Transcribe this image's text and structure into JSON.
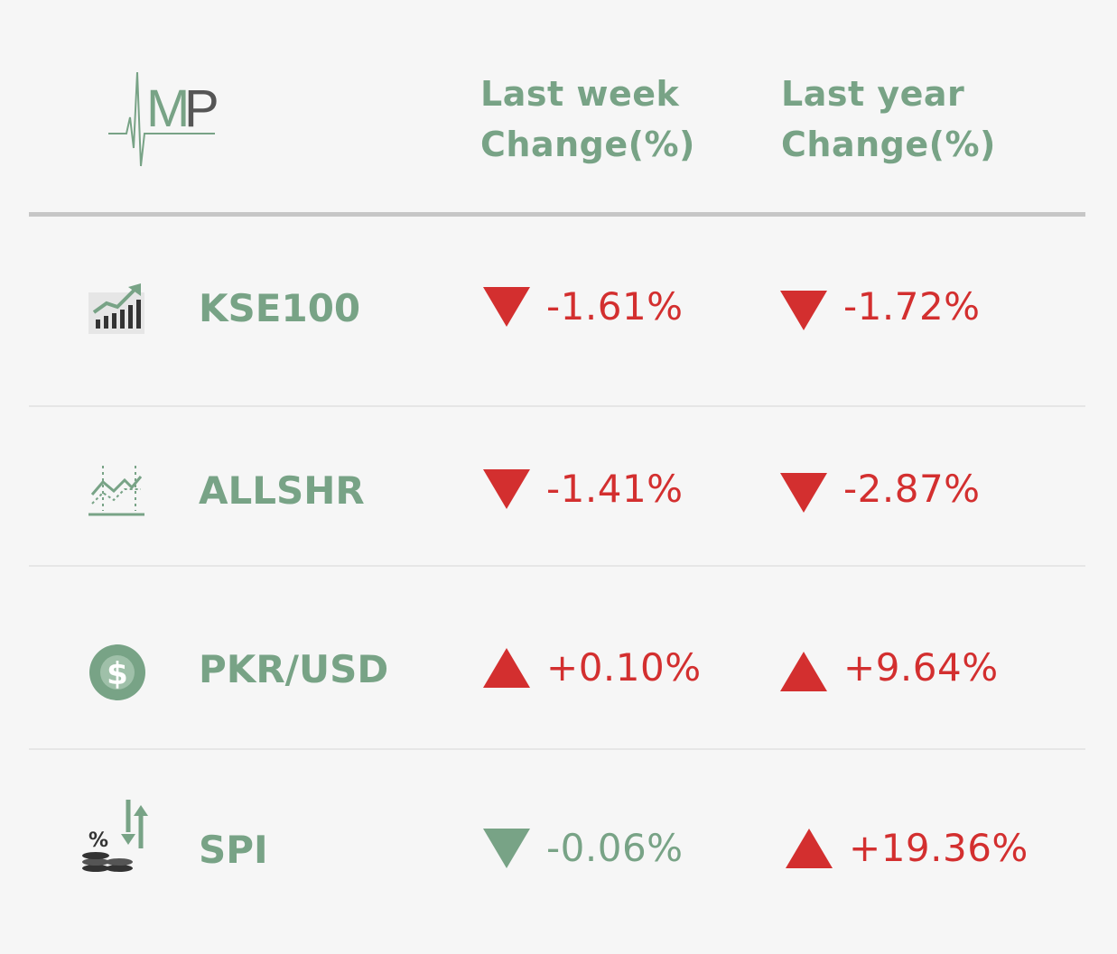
{
  "colors": {
    "header": "#78a386",
    "down_red": "#d32f2f",
    "up_red": "#d32f2f",
    "down_green": "#78a386",
    "separator": "#c6c6c6"
  },
  "logo": {
    "icon": "amp-logo-icon"
  },
  "headers": {
    "last_week_line1": "Last week",
    "last_week_line2": "Change(%)",
    "last_year_line1": "Last year",
    "last_year_line2": "Change(%)"
  },
  "rows": [
    {
      "name": "KSE100",
      "icon": "bar-chart-growth-icon",
      "week": {
        "value": "-1.61%",
        "direction": "down",
        "color": "#d32f2f"
      },
      "year": {
        "value": "-1.72%",
        "direction": "down",
        "color": "#d32f2f"
      }
    },
    {
      "name": "ALLSHR",
      "icon": "line-chart-icon",
      "week": {
        "value": "-1.41%",
        "direction": "down",
        "color": "#d32f2f"
      },
      "year": {
        "value": "-2.87%",
        "direction": "down",
        "color": "#d32f2f"
      }
    },
    {
      "name": "PKR/USD",
      "icon": "dollar-coin-icon",
      "week": {
        "value": "+0.10%",
        "direction": "up",
        "color": "#d32f2f"
      },
      "year": {
        "value": "+9.64%",
        "direction": "up",
        "color": "#d32f2f"
      }
    },
    {
      "name": "SPI",
      "icon": "inflation-coins-icon",
      "week": {
        "value": "-0.06%",
        "direction": "down",
        "color": "#78a386"
      },
      "year": {
        "value": "+19.36%",
        "direction": "up",
        "color": "#d32f2f"
      }
    }
  ]
}
